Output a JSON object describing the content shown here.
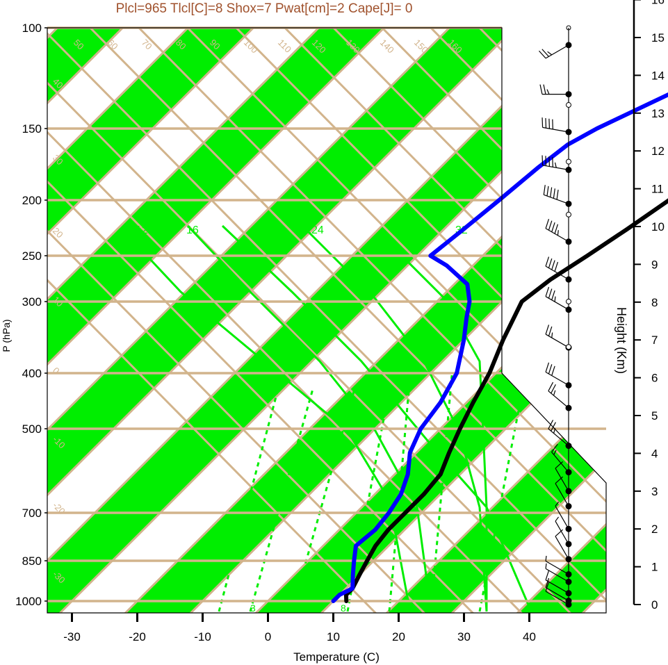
{
  "chart_data": {
    "type": "line",
    "title": "Plcl=965 Tlcl[C]=8 Shox=7 Pwat[cm]=2 Cape[J]= 0",
    "xlabel": "Temperature (C)",
    "ylabel": "P (hPa)",
    "y2label": "Height (Km)",
    "x_ticks": [
      -30,
      -20,
      -10,
      0,
      10,
      20,
      30,
      40
    ],
    "p_ticks": [
      100,
      150,
      200,
      250,
      300,
      400,
      500,
      700,
      850,
      1000
    ],
    "height_ticks": [
      0,
      1,
      2,
      3,
      4,
      5,
      6,
      7,
      8,
      9,
      10,
      11,
      12,
      13,
      14,
      15,
      16
    ],
    "colors": {
      "band": "#00ee00",
      "isopleth": "#d2b48c",
      "title": "#a0522d",
      "temperature": "#000000",
      "dewpoint": "#0000ff",
      "mixing": "#00ee00"
    },
    "isotherm_labels": [
      "50",
      "60",
      "70",
      "80",
      "90",
      "100",
      "110",
      "120",
      "130",
      "140",
      "150",
      "160",
      "40",
      "30",
      "20",
      "10",
      "0",
      "-10",
      "-20",
      "-30"
    ],
    "dry_adiabat_labels": [
      "30",
      "20",
      "10",
      "0",
      "10",
      "20",
      "30"
    ],
    "moist_labels": [
      "12",
      "16",
      "24",
      "32"
    ],
    "mixing_labels": [
      "3",
      "8"
    ],
    "series": [
      {
        "name": "temperature",
        "points": [
          [
            1000,
            12
          ],
          [
            975,
            11
          ],
          [
            950,
            11
          ],
          [
            900,
            10
          ],
          [
            850,
            9
          ],
          [
            800,
            8
          ],
          [
            750,
            7.5
          ],
          [
            700,
            7.5
          ],
          [
            650,
            7.5
          ],
          [
            600,
            7
          ],
          [
            550,
            5
          ],
          [
            500,
            3
          ],
          [
            450,
            1
          ],
          [
            400,
            -1
          ],
          [
            350,
            -4
          ],
          [
            300,
            -7
          ],
          [
            275,
            -6
          ],
          [
            250,
            -4
          ],
          [
            225,
            -2
          ],
          [
            200,
            0
          ],
          [
            175,
            2
          ],
          [
            150,
            5
          ],
          [
            130,
            9
          ],
          [
            115,
            13
          ],
          [
            105,
            15
          ],
          [
            100,
            16
          ]
        ]
      },
      {
        "name": "dewpoint",
        "points": [
          [
            1000,
            10
          ],
          [
            975,
            10
          ],
          [
            950,
            11
          ],
          [
            900,
            9
          ],
          [
            850,
            7
          ],
          [
            800,
            5
          ],
          [
            750,
            5.5
          ],
          [
            700,
            5
          ],
          [
            650,
            4
          ],
          [
            600,
            2
          ],
          [
            550,
            -1
          ],
          [
            500,
            -3
          ],
          [
            450,
            -4
          ],
          [
            400,
            -6
          ],
          [
            350,
            -10
          ],
          [
            320,
            -13
          ],
          [
            300,
            -15
          ],
          [
            280,
            -18
          ],
          [
            260,
            -24
          ],
          [
            250,
            -28
          ],
          [
            225,
            -27
          ],
          [
            200,
            -26
          ],
          [
            175,
            -25
          ],
          [
            160,
            -24
          ],
          [
            150,
            -22
          ],
          [
            130,
            -16
          ],
          [
            115,
            -12
          ],
          [
            105,
            -10
          ],
          [
            100,
            -9
          ]
        ]
      }
    ],
    "wind_barbs": [
      {
        "h": 0.0,
        "kt": 10,
        "dir": 300
      },
      {
        "h": 0.1,
        "kt": 10,
        "dir": 300
      },
      {
        "h": 0.3,
        "kt": 10,
        "dir": 300
      },
      {
        "h": 0.6,
        "kt": 5,
        "dir": 300
      },
      {
        "h": 0.8,
        "kt": 5,
        "dir": 300
      },
      {
        "h": 1.2,
        "kt": 10,
        "dir": 330
      },
      {
        "h": 1.6,
        "kt": 5,
        "dir": 330
      },
      {
        "h": 2.0,
        "kt": 5,
        "dir": 330
      },
      {
        "h": 2.6,
        "kt": 10,
        "dir": 330
      },
      {
        "h": 3.0,
        "kt": 10,
        "dir": 330
      },
      {
        "h": 3.5,
        "kt": 15,
        "dir": 320
      },
      {
        "h": 4.2,
        "kt": 25,
        "dir": 310
      },
      {
        "h": 5.2,
        "kt": 25,
        "dir": 310
      },
      {
        "h": 5.8,
        "kt": 30,
        "dir": 300
      },
      {
        "h": 6.8,
        "kt": 25,
        "dir": 300
      },
      {
        "h": 7.8,
        "kt": 35,
        "dir": 300
      },
      {
        "h": 8.6,
        "kt": 40,
        "dir": 300
      },
      {
        "h": 9.6,
        "kt": 45,
        "dir": 300
      },
      {
        "h": 10.6,
        "kt": 50,
        "dir": 290
      },
      {
        "h": 11.5,
        "kt": 45,
        "dir": 280
      },
      {
        "h": 12.5,
        "kt": 40,
        "dir": 280
      },
      {
        "h": 13.5,
        "kt": 25,
        "dir": 270
      },
      {
        "h": 14.8,
        "kt": 25,
        "dir": 240
      }
    ]
  }
}
